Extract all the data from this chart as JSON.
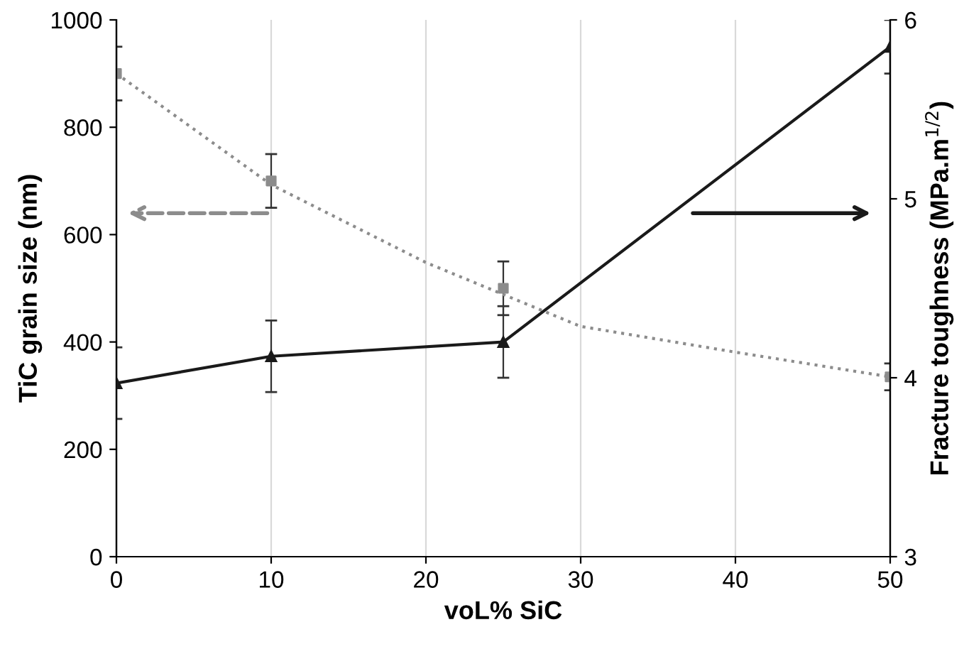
{
  "chart_data": {
    "type": "line",
    "xlabel": "voL% SiC",
    "ylabel": "TiC grain size (nm)",
    "y2label": "Fracture toughness (MPa.m$^{1/2}$)",
    "x": [
      0,
      10,
      25,
      50
    ],
    "series": [
      {
        "type": "scatter",
        "color": "#8c8c8c",
        "marker": "square",
        "values": [
          900,
          700,
          500,
          335
        ],
        "errors": [
          50,
          50,
          50,
          25
        ]
      },
      {
        "color": "#8c8c8c",
        "line_style": "dotted",
        "marker": "none",
        "x": [
          0,
          10,
          20,
          30,
          40,
          50
        ],
        "values": [
          900,
          693,
          548,
          429,
          381,
          335
        ]
      },
      {
        "axis": "y2",
        "color": "#1a1a1a",
        "line_style": "solid",
        "marker": "triangle",
        "values": [
          3.97,
          4.12,
          4.2,
          5.85
        ],
        "errors": [
          0.2,
          0.2,
          0.2,
          0.15
        ]
      }
    ],
    "xlim": [
      0,
      50
    ],
    "xticks": [
      0,
      10,
      20,
      30,
      40,
      50
    ],
    "ylim": [
      0,
      1000
    ],
    "yticks": [
      0,
      200,
      400,
      600,
      800,
      1000
    ],
    "y2lim": [
      3,
      6
    ],
    "y2ticks": [
      3,
      4,
      5,
      6
    ],
    "grid": "x",
    "legend": false
  }
}
